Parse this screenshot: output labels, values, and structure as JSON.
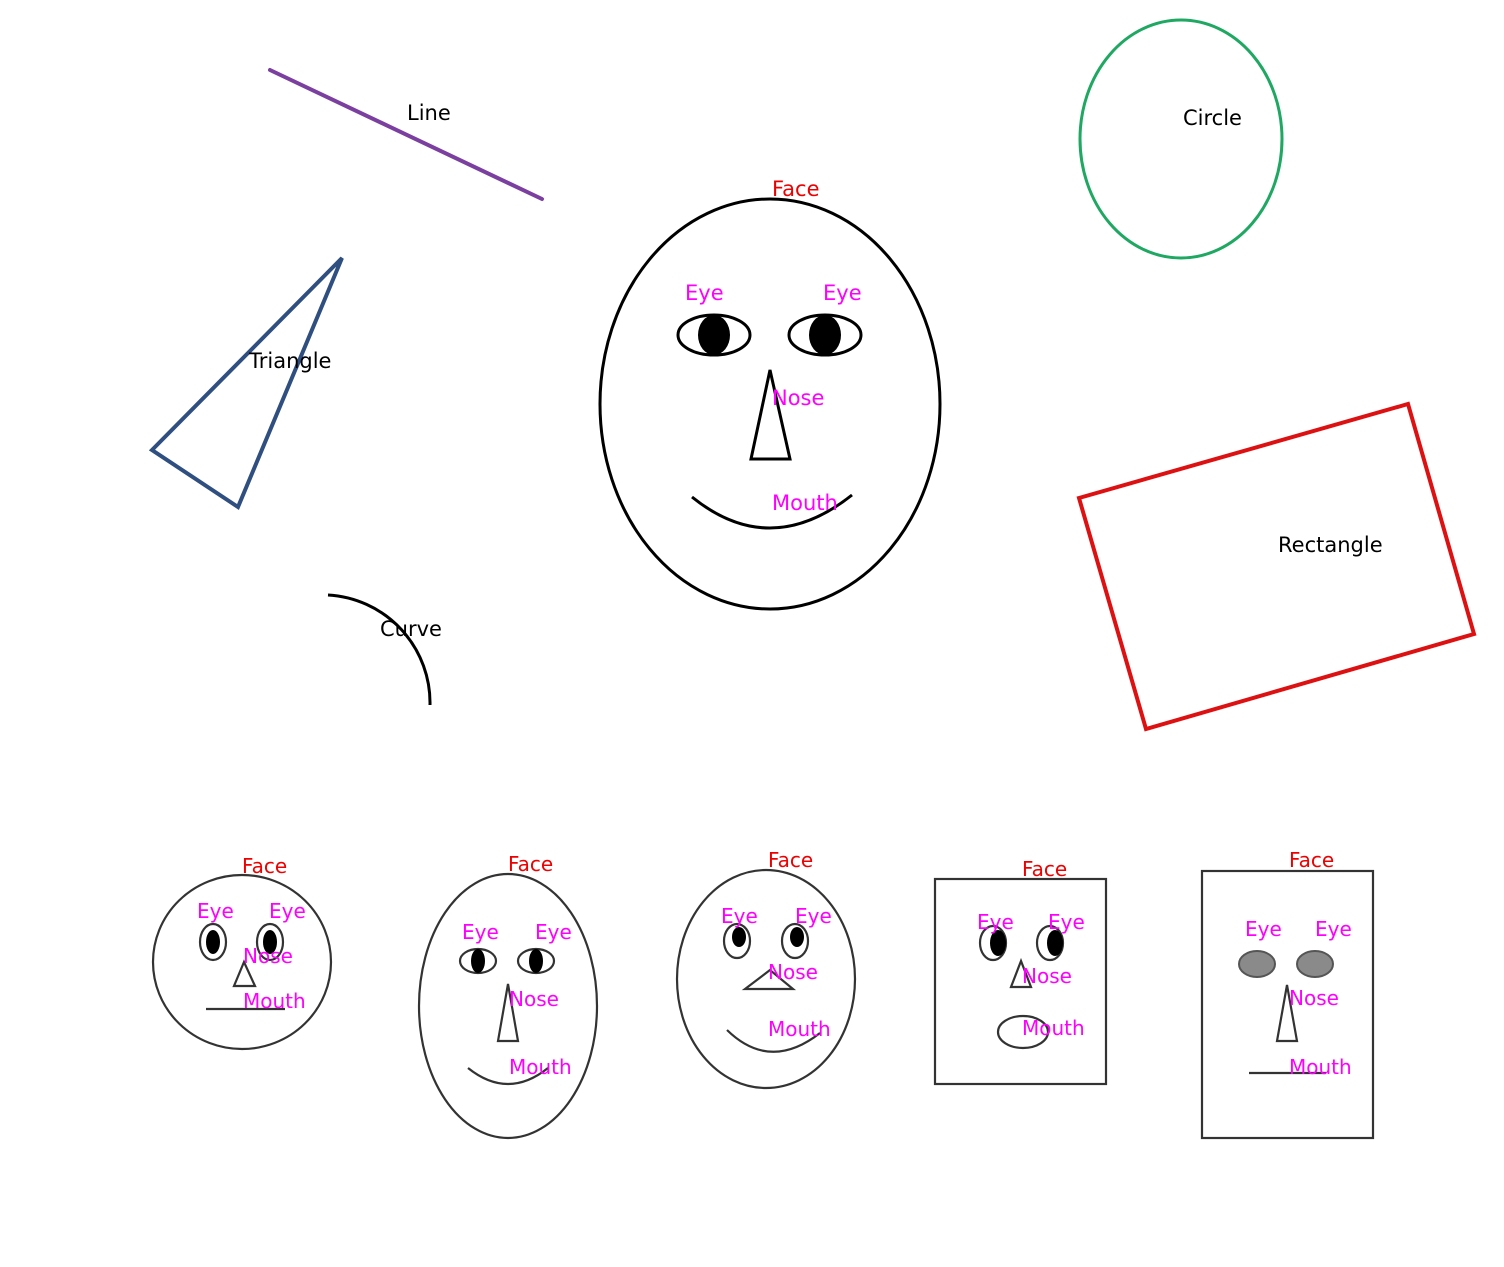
{
  "colors": {
    "line": "#7b3fa0",
    "triangle": "#2f4f80",
    "circle": "#1fa862",
    "rectangle": "#dd1111",
    "face_label": "#ee0000",
    "part_label": "#ff00ff",
    "outline": "#000000",
    "gray_eye": "#8a8a8a"
  },
  "shapes": {
    "line_label": "Line",
    "triangle_label": "Triangle",
    "curve_label": "Curve",
    "circle_label": "Circle",
    "rectangle_label": "Rectangle"
  },
  "main_face": {
    "face_label": "Face",
    "eye_left_label": "Eye",
    "eye_right_label": "Eye",
    "nose_label": "Nose",
    "mouth_label": "Mouth"
  },
  "small_faces": [
    {
      "face_label": "Face",
      "eye_left_label": "Eye",
      "eye_right_label": "Eye",
      "nose_label": "Nose",
      "mouth_label": "Mouth"
    },
    {
      "face_label": "Face",
      "eye_left_label": "Eye",
      "eye_right_label": "Eye",
      "nose_label": "Nose",
      "mouth_label": "Mouth"
    },
    {
      "face_label": "Face",
      "eye_left_label": "Eye",
      "eye_right_label": "Eye",
      "nose_label": "Nose",
      "mouth_label": "Mouth"
    },
    {
      "face_label": "Face",
      "eye_left_label": "Eye",
      "eye_right_label": "Eye",
      "nose_label": "Nose",
      "mouth_label": "Mouth"
    },
    {
      "face_label": "Face",
      "eye_left_label": "Eye",
      "eye_right_label": "Eye",
      "nose_label": "Nose",
      "mouth_label": "Mouth"
    }
  ]
}
